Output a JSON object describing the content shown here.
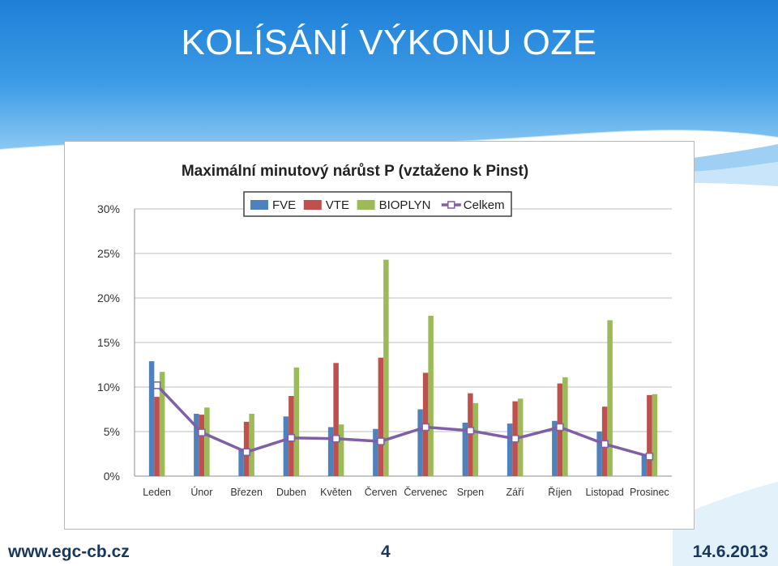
{
  "slide": {
    "title": "KOLÍSÁNÍ VÝKONU OZE",
    "footer_url": "www.egc-cb.cz",
    "page_number": "4",
    "date": "14.6.2013"
  },
  "colors": {
    "header_blue": "#2f8fe0",
    "FVE": "#4f81bd",
    "VTE": "#c0504d",
    "BIOPLYN": "#9bbb59",
    "Celkem": "#7f5fa6",
    "footer_text": "#17375e"
  },
  "chart_data": {
    "type": "bar",
    "title": "Maximální minutový nárůst P (vztaženo k Pinst)",
    "xlabel": "",
    "ylabel": "",
    "ylim": [
      0,
      30
    ],
    "yticks": [
      0,
      5,
      10,
      15,
      20,
      25,
      30
    ],
    "ytick_labels": [
      "0%",
      "5%",
      "10%",
      "15%",
      "20%",
      "25%",
      "30%"
    ],
    "grid": true,
    "legend_position": "top",
    "categories": [
      "Leden",
      "Únor",
      "Březen",
      "Duben",
      "Květen",
      "Červen",
      "Červenec",
      "Srpen",
      "Září",
      "Říjen",
      "Listopad",
      "Prosinec"
    ],
    "series": [
      {
        "name": "FVE",
        "type": "bar",
        "values": [
          12.9,
          7.0,
          3.1,
          6.7,
          5.5,
          5.3,
          7.5,
          6.0,
          5.9,
          6.2,
          5.0,
          2.5
        ]
      },
      {
        "name": "VTE",
        "type": "bar",
        "values": [
          8.9,
          6.9,
          6.1,
          9.0,
          12.7,
          13.3,
          11.6,
          9.3,
          8.4,
          10.4,
          7.8,
          9.1
        ]
      },
      {
        "name": "BIOPLYN",
        "type": "bar",
        "values": [
          11.7,
          7.7,
          7.0,
          12.2,
          5.8,
          24.3,
          18.0,
          8.2,
          8.7,
          11.1,
          17.5,
          9.2
        ]
      },
      {
        "name": "Celkem",
        "type": "line",
        "values": [
          10.2,
          4.9,
          2.7,
          4.3,
          4.2,
          3.9,
          5.5,
          5.1,
          4.2,
          5.5,
          3.6,
          2.2
        ]
      }
    ]
  }
}
